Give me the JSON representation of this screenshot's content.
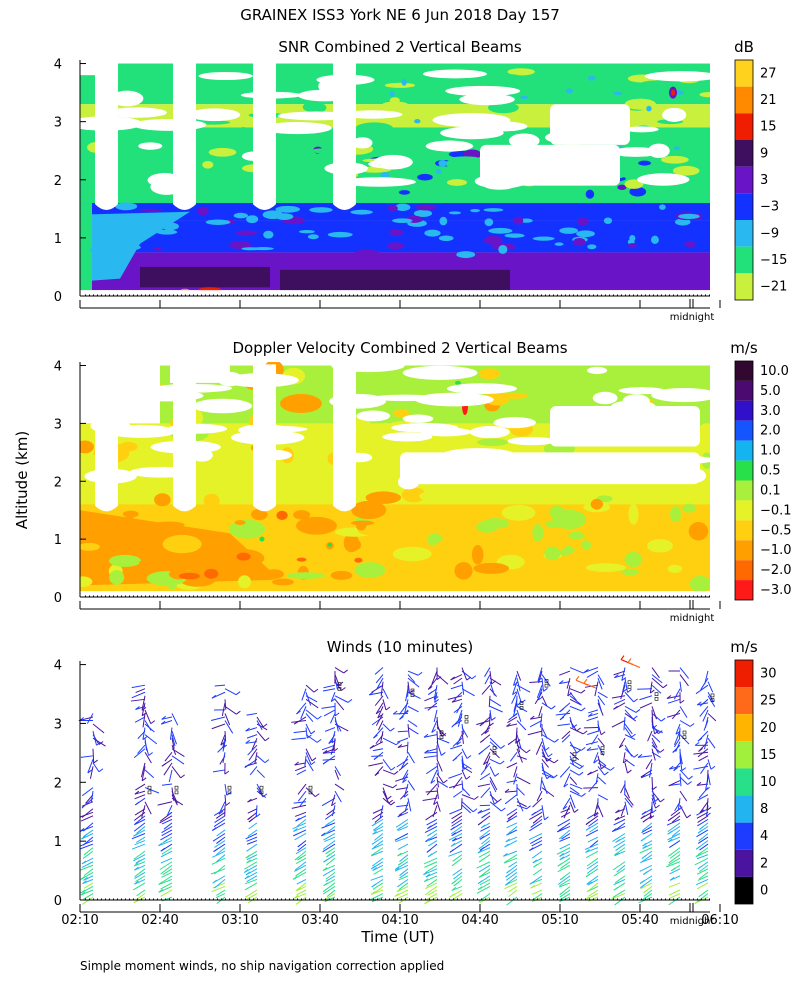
{
  "figure": {
    "title": "GRAINEX ISS3 York NE   6 Jun 2018 Day 157",
    "ylabel": "Altitude (km)",
    "xlabel": "Time (UT)",
    "footnote": "Simple moment winds, no ship navigation correction applied",
    "midnight_label": "midnight"
  },
  "chart_data": [
    {
      "type": "heatmap",
      "title": "SNR Combined 2 Vertical Beams",
      "ylim": [
        0,
        4
      ],
      "yticks": [
        "0",
        "1",
        "2",
        "3",
        "4"
      ],
      "colorbar": {
        "unit": "dB",
        "labels": [
          "27",
          "21",
          "15",
          "9",
          "3",
          "−3",
          "−9",
          "−15",
          "−21"
        ],
        "colors": [
          "#ffd21e",
          "#ff8a00",
          "#f01e00",
          "#3d0f5e",
          "#6a14c8",
          "#1432ff",
          "#2ab8f0",
          "#22e07a",
          "#c8f03c"
        ]
      }
    },
    {
      "type": "heatmap",
      "title": "Doppler Velocity Combined 2 Vertical Beams",
      "ylim": [
        0,
        4
      ],
      "yticks": [
        "0",
        "1",
        "2",
        "3",
        "4"
      ],
      "colorbar": {
        "unit": "m/s",
        "labels": [
          "10.0",
          "5.0",
          "3.0",
          "2.0",
          "1.0",
          "0.5",
          "0.1",
          "−0.1",
          "−0.5",
          "−1.0",
          "−2.0",
          "−3.0"
        ],
        "colors": [
          "#300830",
          "#4a0a70",
          "#3010c8",
          "#1455ff",
          "#14b4f0",
          "#28e04a",
          "#a8f03c",
          "#e6f228",
          "#ffd010",
          "#ffa000",
          "#ff6a00",
          "#ff1a1a"
        ]
      }
    },
    {
      "type": "scatter",
      "title": "Winds (10 minutes)",
      "ylim": [
        0,
        4
      ],
      "yticks": [
        "0",
        "1",
        "2",
        "3",
        "4"
      ],
      "xticks": [
        "02:10",
        "02:40",
        "03:10",
        "03:40",
        "04:10",
        "04:40",
        "05:10",
        "05:40",
        "06:10"
      ],
      "colorbar": {
        "unit": "m/s",
        "labels": [
          "30",
          "25",
          "20",
          "15",
          "10",
          "8",
          "4",
          "2",
          "0"
        ],
        "colors": [
          "#f01e00",
          "#ff6a1a",
          "#ffb400",
          "#a0f03c",
          "#28e08a",
          "#22b4f0",
          "#1e3cff",
          "#4a14a0",
          "#000000"
        ]
      }
    }
  ]
}
